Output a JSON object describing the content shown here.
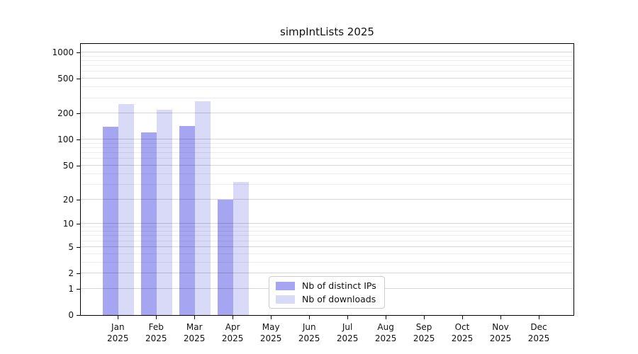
{
  "title": "simpIntLists 2025",
  "chart_data": {
    "type": "bar",
    "title": "simpIntLists 2025",
    "categories": [
      "Jan 2025",
      "Feb 2025",
      "Mar 2025",
      "Apr 2025",
      "May 2025",
      "Jun 2025",
      "Jul 2025",
      "Aug 2025",
      "Sep 2025",
      "Oct 2025",
      "Nov 2025",
      "Dec 2025"
    ],
    "series": [
      {
        "name": "Nb of distinct IPs",
        "color": "#a5a5f2",
        "values": [
          140,
          122,
          143,
          20,
          0,
          0,
          0,
          0,
          0,
          0,
          0,
          0
        ]
      },
      {
        "name": "Nb of downloads",
        "color": "#d9d9f8",
        "values": [
          255,
          219,
          274,
          32,
          0,
          0,
          0,
          0,
          0,
          0,
          0,
          0
        ]
      }
    ],
    "xlabel": "",
    "ylabel": "",
    "y_scale": "log10(1+value)",
    "y_ticks": [
      0,
      1,
      2,
      5,
      10,
      20,
      50,
      100,
      200,
      500,
      1000
    ],
    "y_minor_gridlines": [
      3,
      4,
      6,
      7,
      8,
      9,
      30,
      40,
      60,
      70,
      80,
      90,
      300,
      400,
      600,
      700,
      800,
      900
    ],
    "ylim": [
      0,
      1250
    ],
    "grid": "horizontal",
    "legend_position": "inside-bottom-center"
  },
  "legend": {
    "items": [
      {
        "label": "Nb of distinct IPs",
        "color": "#a5a5f2"
      },
      {
        "label": "Nb of downloads",
        "color": "#d9d9f8"
      }
    ]
  },
  "colors": {
    "series_dark": "#a5a5f2",
    "series_light": "#d9d9f8",
    "spine": "#000000",
    "grid_major": "#d6d6d6",
    "grid_minor": "#ececec",
    "legend_border": "#cccccc",
    "text": "#111111",
    "background": "#ffffff"
  }
}
